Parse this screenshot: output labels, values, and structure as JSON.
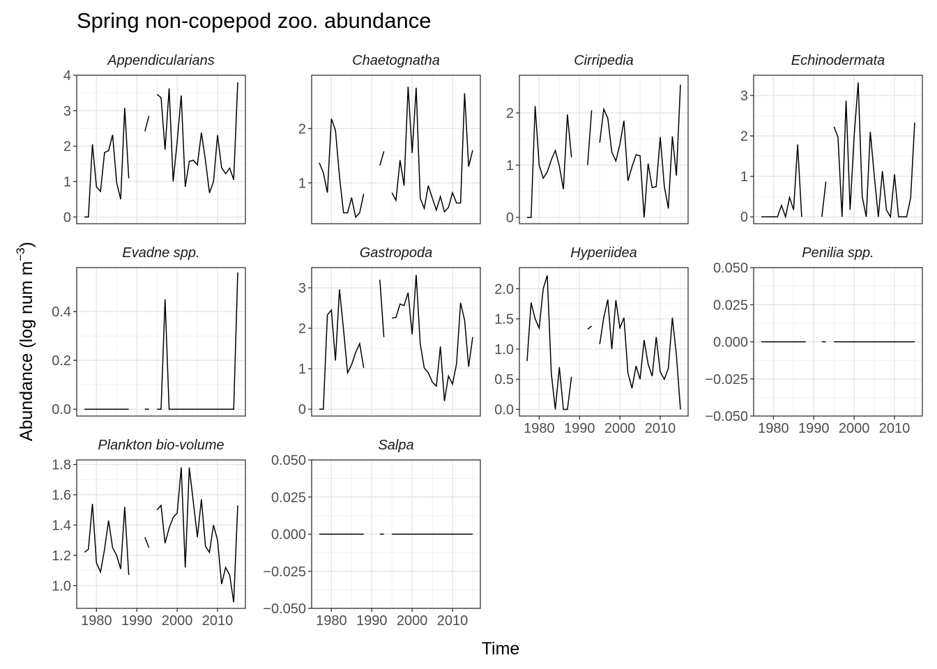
{
  "title": "Spring non-copepod zoo. abundance",
  "ylabel_main": "Abundance (log num m",
  "ylabel_sup": "−3",
  "ylabel_close": ")",
  "xlabel": "Time",
  "chart_data": {
    "type": "line",
    "title": "Spring non-copepod zoo. abundance",
    "xlabel": "Time",
    "ylabel": "Abundance (log num m−3)",
    "x_years": [
      1977,
      1978,
      1979,
      1980,
      1981,
      1982,
      1983,
      1984,
      1985,
      1986,
      1987,
      1988,
      1989,
      1990,
      1991,
      1992,
      1993,
      1994,
      1995,
      1996,
      1997,
      1998,
      1999,
      2000,
      2001,
      2002,
      2003,
      2004,
      2005,
      2006,
      2007,
      2008,
      2009,
      2010,
      2011,
      2012,
      2013,
      2014,
      2015
    ],
    "xticks": [
      1980,
      1990,
      2000,
      2010
    ],
    "xlim": [
      1975.1,
      2016.9
    ],
    "grid": true,
    "panels": [
      {
        "name": "Appendicularians",
        "ylim": [
          -0.19,
          4.0
        ],
        "yticks": [
          0,
          1,
          2,
          3,
          4
        ],
        "ytick_labels": [
          "0",
          "1",
          "2",
          "3",
          "4"
        ],
        "values": [
          0,
          0,
          2.05,
          0.85,
          0.72,
          1.82,
          1.87,
          2.32,
          0.97,
          0.5,
          3.08,
          1.09,
          null,
          null,
          null,
          2.42,
          2.85,
          null,
          3.46,
          3.37,
          1.9,
          3.63,
          1.0,
          2.14,
          3.43,
          0.85,
          1.57,
          1.6,
          1.47,
          2.38,
          1.6,
          0.68,
          1.0,
          2.31,
          1.39,
          1.22,
          1.38,
          1.05,
          3.8
        ]
      },
      {
        "name": "Chaetognatha",
        "ylim": [
          0.25,
          2.98
        ],
        "yticks": [
          1,
          2
        ],
        "ytick_labels": [
          "1",
          "2"
        ],
        "values": [
          1.37,
          1.19,
          0.82,
          2.18,
          1.97,
          1.12,
          0.45,
          0.45,
          0.73,
          0.37,
          0.45,
          0.8,
          null,
          null,
          null,
          1.32,
          1.58,
          null,
          0.82,
          0.68,
          1.42,
          0.95,
          2.77,
          1.55,
          2.75,
          0.72,
          0.53,
          0.95,
          0.72,
          0.5,
          0.75,
          0.47,
          0.55,
          0.82,
          0.63,
          0.63,
          2.65,
          1.3,
          1.6
        ]
      },
      {
        "name": "Cirripedia",
        "ylim": [
          -0.12,
          2.72
        ],
        "yticks": [
          0,
          1,
          2
        ],
        "ytick_labels": [
          "0",
          "1",
          "2"
        ],
        "values": [
          0,
          0,
          2.13,
          1.0,
          0.75,
          0.87,
          1.1,
          1.28,
          0.98,
          0.54,
          1.97,
          1.15,
          null,
          null,
          null,
          1.0,
          2.05,
          null,
          1.43,
          2.07,
          1.9,
          1.25,
          1.08,
          1.4,
          1.85,
          0.7,
          0.97,
          1.2,
          1.18,
          0,
          1.03,
          0.57,
          0.59,
          1.54,
          0.6,
          0.17,
          1.55,
          0.8,
          2.54
        ]
      },
      {
        "name": "Echinodermata",
        "ylim": [
          -0.17,
          3.5
        ],
        "yticks": [
          0,
          1,
          2,
          3
        ],
        "ytick_labels": [
          "0",
          "1",
          "2",
          "3"
        ],
        "values": [
          0,
          0,
          0,
          0,
          0,
          0.28,
          0,
          0.48,
          0.17,
          1.79,
          0,
          null,
          null,
          null,
          null,
          0,
          0.87,
          null,
          2.23,
          1.97,
          0,
          2.87,
          0.17,
          2.0,
          3.32,
          0.5,
          0,
          2.1,
          1.0,
          0,
          1.13,
          0.17,
          0,
          1.05,
          0,
          0,
          0,
          0.47,
          2.33
        ]
      },
      {
        "name": "Evadne spp.",
        "ylim": [
          -0.028,
          0.58
        ],
        "yticks": [
          0,
          0.2,
          0.4
        ],
        "ytick_labels": [
          "0.0",
          "0.2",
          "0.4"
        ],
        "values": [
          0,
          0,
          0,
          0,
          0,
          0,
          0,
          0,
          0,
          0,
          0,
          0,
          null,
          null,
          null,
          0,
          0,
          null,
          0,
          0,
          0.45,
          0,
          0,
          0,
          0,
          0,
          0,
          0,
          0,
          0,
          0,
          0,
          0,
          0,
          0,
          0,
          0,
          0,
          0.56
        ]
      },
      {
        "name": "Gastropoda",
        "ylim": [
          -0.17,
          3.5
        ],
        "yticks": [
          0,
          1,
          2,
          3
        ],
        "ytick_labels": [
          "0",
          "1",
          "2",
          "3"
        ],
        "values": [
          0,
          0,
          2.33,
          2.45,
          1.2,
          2.96,
          1.97,
          0.9,
          1.1,
          1.4,
          1.62,
          1.02,
          null,
          null,
          null,
          3.2,
          1.78,
          null,
          2.25,
          2.27,
          2.6,
          2.56,
          2.88,
          1.85,
          3.32,
          1.62,
          1.02,
          0.9,
          0.67,
          0.57,
          1.55,
          0.2,
          0.82,
          0.62,
          1.12,
          2.63,
          2.2,
          1.05,
          1.78
        ]
      },
      {
        "name": "Hyperiidea",
        "ylim": [
          -0.11,
          2.35
        ],
        "yticks": [
          0,
          0.5,
          1,
          1.5,
          2
        ],
        "ytick_labels": [
          "0.0",
          "0.5",
          "1.0",
          "1.5",
          "2.0"
        ],
        "values": [
          0.8,
          1.77,
          1.5,
          1.35,
          2.0,
          2.22,
          0.6,
          0,
          0.7,
          0,
          0,
          0.54,
          null,
          null,
          null,
          1.33,
          1.38,
          null,
          1.08,
          1.52,
          1.82,
          1.0,
          1.81,
          1.35,
          1.52,
          0.6,
          0.35,
          0.72,
          0.5,
          1.15,
          0.75,
          0.55,
          1.2,
          0.62,
          0.5,
          0.68,
          1.52,
          0.9,
          0
        ]
      },
      {
        "name": "Penilia spp.",
        "ylim": [
          -0.05,
          0.05
        ],
        "yticks": [
          -0.05,
          -0.025,
          0,
          0.025,
          0.05
        ],
        "ytick_labels": [
          "−0.050",
          "−0.025",
          "0.000",
          "0.025",
          "0.050"
        ],
        "values": [
          0,
          0,
          0,
          0,
          0,
          0,
          0,
          0,
          0,
          0,
          0,
          0,
          null,
          null,
          null,
          0,
          0,
          null,
          0,
          0,
          0,
          0,
          0,
          0,
          0,
          0,
          0,
          0,
          0,
          0,
          0,
          0,
          0,
          0,
          0,
          0,
          0,
          0,
          0
        ]
      },
      {
        "name": "Plankton bio-volume",
        "ylim": [
          0.85,
          1.83
        ],
        "yticks": [
          1.0,
          1.2,
          1.4,
          1.6,
          1.8
        ],
        "ytick_labels": [
          "1.0",
          "1.2",
          "1.4",
          "1.6",
          "1.8"
        ],
        "values": [
          1.22,
          1.24,
          1.54,
          1.15,
          1.09,
          1.24,
          1.43,
          1.25,
          1.2,
          1.11,
          1.52,
          1.07,
          null,
          null,
          null,
          1.32,
          1.25,
          null,
          1.5,
          1.53,
          1.28,
          1.38,
          1.45,
          1.48,
          1.78,
          1.12,
          1.78,
          1.55,
          1.32,
          1.57,
          1.26,
          1.22,
          1.4,
          1.3,
          1.01,
          1.12,
          1.07,
          0.89,
          1.53
        ]
      },
      {
        "name": "Salpa",
        "ylim": [
          -0.05,
          0.05
        ],
        "yticks": [
          -0.05,
          -0.025,
          0,
          0.025,
          0.05
        ],
        "ytick_labels": [
          "−0.050",
          "−0.025",
          "0.000",
          "0.025",
          "0.050"
        ],
        "values": [
          0,
          0,
          0,
          0,
          0,
          0,
          0,
          0,
          0,
          0,
          0,
          0,
          null,
          null,
          null,
          0,
          0,
          null,
          0,
          0,
          0,
          0,
          0,
          0,
          0,
          0,
          0,
          0,
          0,
          0,
          0,
          0,
          0,
          0,
          0,
          0,
          0,
          0,
          0
        ]
      }
    ]
  }
}
